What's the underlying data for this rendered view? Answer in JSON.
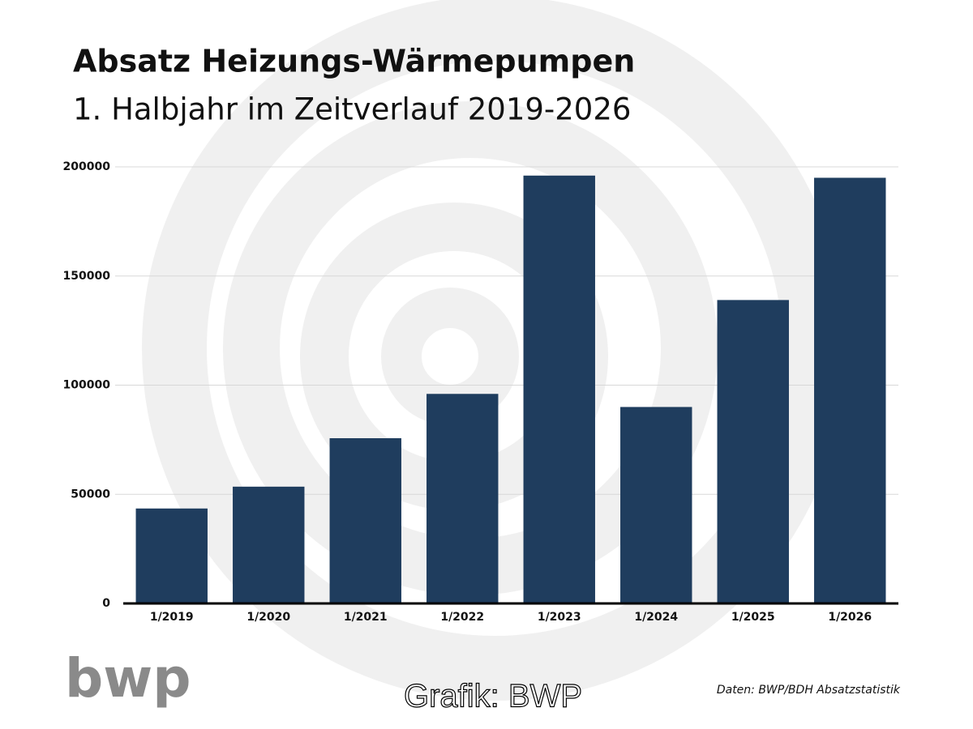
{
  "chart_data": {
    "type": "bar",
    "title": "Absatz Heizungs-Wärmepumpen",
    "subtitle": "1. Halbjahr im Zeitverlauf 2019-2026",
    "categories": [
      "1/2019",
      "1/2020",
      "1/2021",
      "1/2022",
      "1/2023",
      "1/2024",
      "1/2025",
      "1/2026"
    ],
    "values": [
      43500,
      53500,
      75700,
      96000,
      196000,
      90000,
      139000,
      195000
    ],
    "color": "#1f3d5e",
    "ylim": [
      0,
      200000
    ],
    "yticks": [
      0,
      50000,
      100000,
      150000,
      200000
    ],
    "grid": true,
    "source": "Daten: BWP/BDH Absatzstatistik",
    "credit": "Grafik: BWP",
    "logo": "bwp"
  }
}
